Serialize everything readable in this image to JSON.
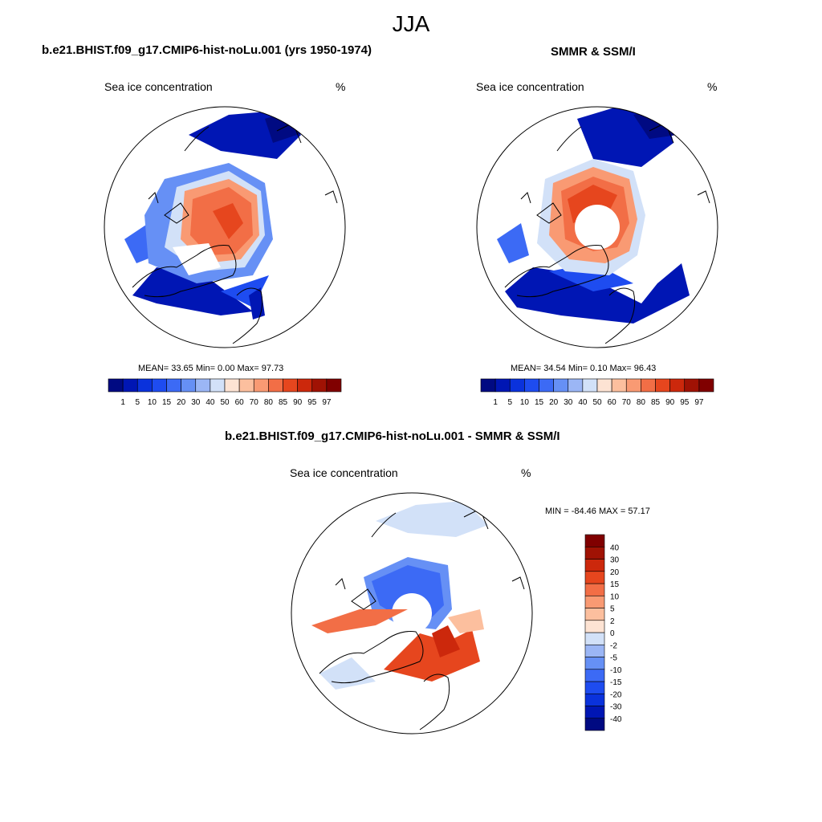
{
  "season": "JJA",
  "panels": [
    {
      "title": "b.e21.BHIST.f09_g17.CMIP6-hist-noLu.001 (yrs 1950-1974)",
      "left_label": "Sea ice concentration",
      "right_label": "%",
      "stats": {
        "mean": "33.65",
        "min": "0.00",
        "max": "97.73"
      },
      "stats_text": "MEAN=  33.65  Min=   0.00  Max=  97.73"
    },
    {
      "title": "SMMR & SSM/I",
      "left_label": "Sea ice concentration",
      "right_label": "%",
      "stats": {
        "mean": "34.54",
        "min": "0.10",
        "max": "96.43"
      },
      "stats_text": "MEAN=  34.54  Min=   0.10  Max=  96.43"
    },
    {
      "title": "b.e21.BHIST.f09_g17.CMIP6-hist-noLu.001 - SMMR & SSM/I",
      "left_label": "Sea ice concentration",
      "right_label": "%",
      "stats": {
        "min": "-84.46",
        "max": "57.17"
      },
      "stats_text": "MIN = -84.46 MAX =  57.17"
    }
  ],
  "colorbar_abs": {
    "colors": [
      "#000a82",
      "#0016b4",
      "#0a32dc",
      "#1e4cf0",
      "#3c6af5",
      "#6690f5",
      "#9bb6f5",
      "#d2e1f8",
      "#fde3d3",
      "#fcbf9e",
      "#f99a73",
      "#f26e46",
      "#e6461e",
      "#cc280c",
      "#a01204",
      "#800000"
    ],
    "ticks": [
      "1",
      "5",
      "10",
      "15",
      "20",
      "30",
      "40",
      "50",
      "60",
      "70",
      "80",
      "85",
      "90",
      "95",
      "97"
    ]
  },
  "colorbar_diff": {
    "colors": [
      "#000a82",
      "#0016b4",
      "#0a32dc",
      "#1e4cf0",
      "#3c6af5",
      "#6690f5",
      "#9bb6f5",
      "#d2e1f8",
      "#fde3d3",
      "#fcbf9e",
      "#f99a73",
      "#f26e46",
      "#e6461e",
      "#cc280c",
      "#a01204",
      "#800000"
    ],
    "ticks": [
      "-40",
      "-30",
      "-20",
      "-15",
      "-10",
      "-5",
      "-2",
      "0",
      "2",
      "5",
      "10",
      "15",
      "20",
      "30",
      "40"
    ]
  }
}
